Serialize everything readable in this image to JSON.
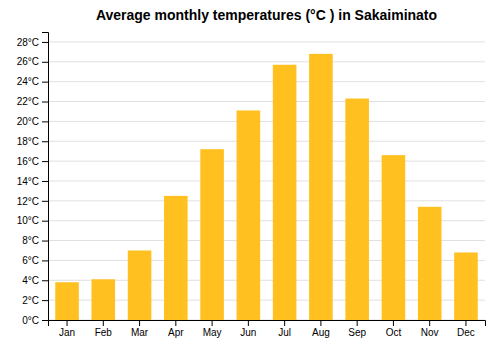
{
  "chart_data": {
    "type": "bar",
    "title": "Average monthly temperatures (°C ) in Sakaiminato",
    "categories": [
      "Jan",
      "Feb",
      "Mar",
      "Apr",
      "May",
      "Jun",
      "Jul",
      "Aug",
      "Sep",
      "Oct",
      "Nov",
      "Dec"
    ],
    "values": [
      3.8,
      4.1,
      7.0,
      12.5,
      17.2,
      21.1,
      25.7,
      26.8,
      22.3,
      16.6,
      11.4,
      6.8
    ],
    "color": "#FFC020",
    "ylim": [
      0,
      29
    ],
    "yticks": [
      {
        "value": 0,
        "label": "0°C"
      },
      {
        "value": 2,
        "label": "2°C"
      },
      {
        "value": 4,
        "label": "4°C"
      },
      {
        "value": 6,
        "label": "6°C"
      },
      {
        "value": 8,
        "label": "8°C"
      },
      {
        "value": 10,
        "label": "10°C"
      },
      {
        "value": 12,
        "label": "12°C"
      },
      {
        "value": 14,
        "label": "14°C"
      },
      {
        "value": 16,
        "label": "16°C"
      },
      {
        "value": 18,
        "label": "18°C"
      },
      {
        "value": 20,
        "label": "20°C"
      },
      {
        "value": 22,
        "label": "22°C"
      },
      {
        "value": 24,
        "label": "24°C"
      },
      {
        "value": 26,
        "label": "26°C"
      },
      {
        "value": 28,
        "label": "28°C"
      }
    ],
    "grid": true
  }
}
